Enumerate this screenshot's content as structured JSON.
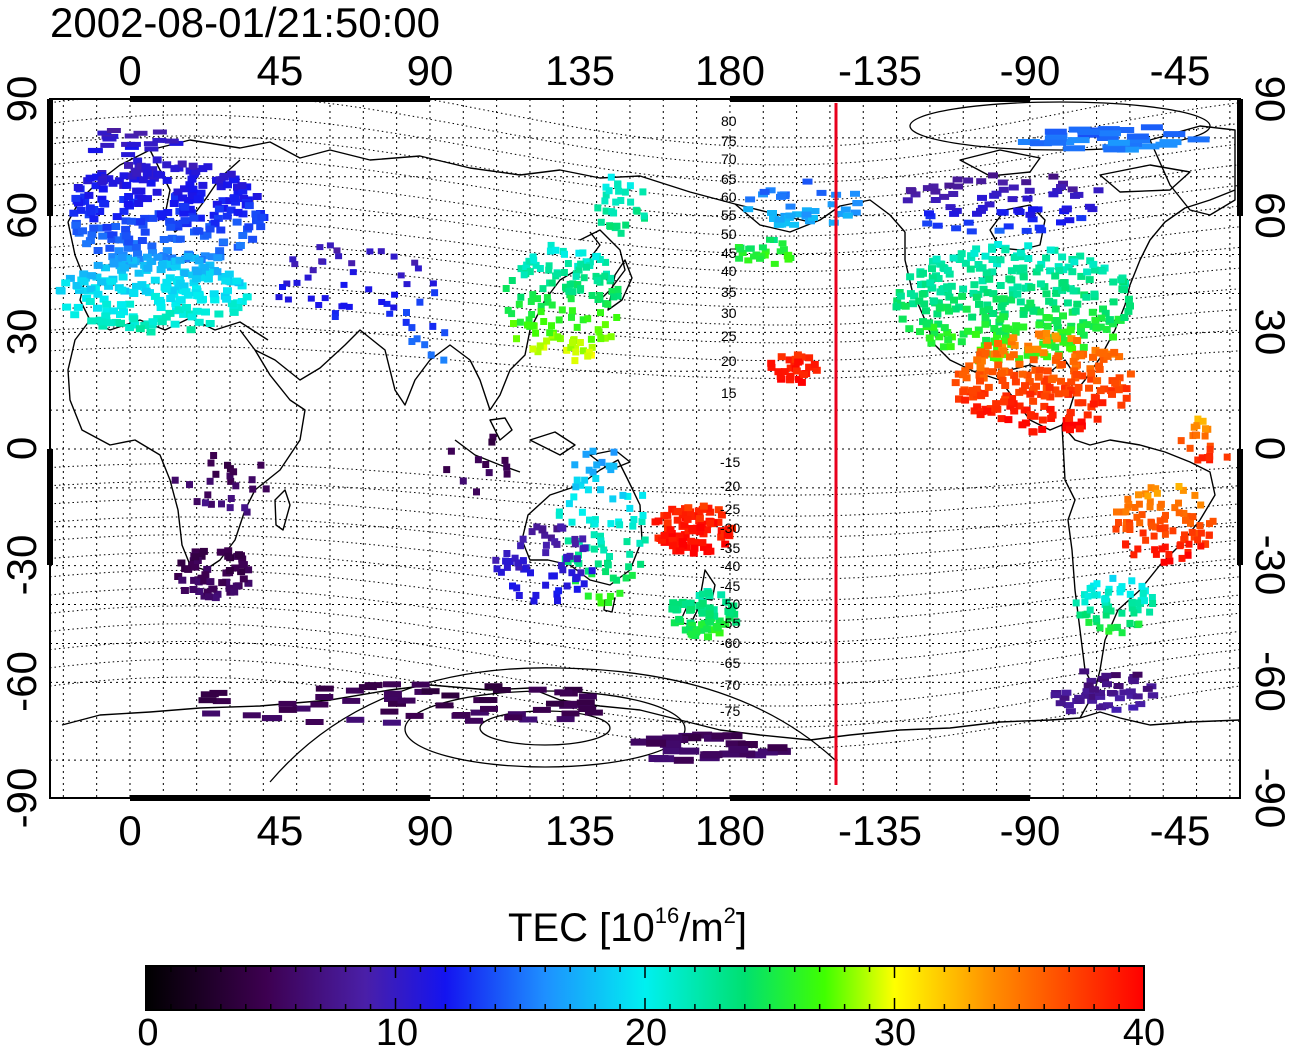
{
  "title": "2002-08-01/21:50:00",
  "map": {
    "lon_tick_labels": [
      "0",
      "45",
      "90",
      "135",
      "180",
      "-135",
      "-90",
      "-45"
    ],
    "lat_tick_labels": [
      "90",
      "60",
      "30",
      "0",
      "-30",
      "-60",
      "-90"
    ],
    "contour_labels_north": [
      "80",
      "75",
      "70",
      "65",
      "60",
      "55",
      "50",
      "45",
      "40",
      "35",
      "30",
      "25",
      "20",
      "15"
    ],
    "contour_labels_south": [
      "-15",
      "-20",
      "-25",
      "-30",
      "-35",
      "-40",
      "-45",
      "-50",
      "-55",
      "-60",
      "-65",
      "-70",
      "-75"
    ],
    "contour_style": "dotted",
    "terminator_line_color": "#e8001c",
    "coastline_color": "#000000"
  },
  "colorbar": {
    "title_text": "TEC  [10",
    "title_exp": "16",
    "title_unit": "/m",
    "title_unit_exp": "2",
    "title_close": "]",
    "min": 0,
    "max": 40,
    "tick_labels": [
      "0",
      "10",
      "20",
      "30",
      "40"
    ],
    "colormap": "black-purple-blue-cyan-green-yellow-red"
  }
}
